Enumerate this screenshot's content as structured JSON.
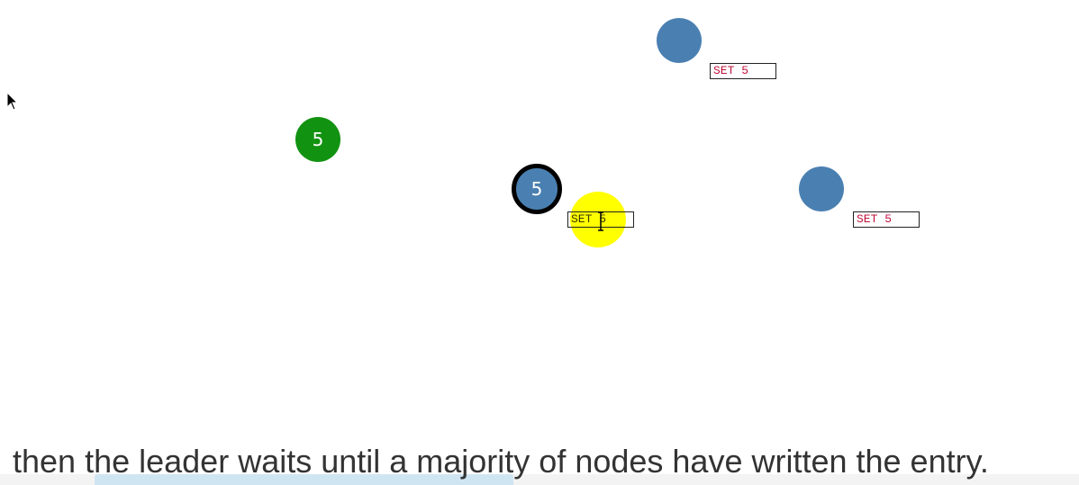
{
  "colors": {
    "follower": "#4a80b1",
    "candidate": "#129211",
    "highlight": "#ffff00",
    "leader_border": "#000000",
    "log_text": "#c0143c"
  },
  "nodes": [
    {
      "id": "candidate",
      "label": "5",
      "role": "candidate"
    },
    {
      "id": "leader",
      "label": "5",
      "role": "leader"
    },
    {
      "id": "top-follower",
      "label": "",
      "role": "follower"
    },
    {
      "id": "right-follower",
      "label": "",
      "role": "follower"
    }
  ],
  "logs": {
    "leader": "SET 5",
    "top_follower": "SET 5",
    "right_follower": "SET 5"
  },
  "caption": "then the leader waits until a majority of nodes have written the entry.",
  "icons": {
    "mouse_cursor": "arrow-cursor-icon",
    "text_cursor": "ibeam-cursor-icon"
  }
}
